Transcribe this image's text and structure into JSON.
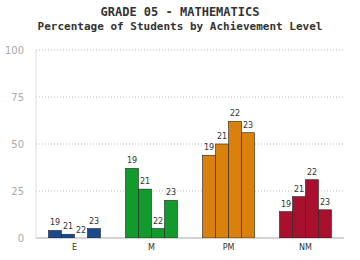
{
  "chart_data": {
    "type": "bar",
    "title": "GRADE 05 - MATHEMATICS",
    "subtitle": "Percentage of Students by Achievement Level",
    "categories": [
      "E",
      "M",
      "PM",
      "NM"
    ],
    "series": [
      {
        "name": "19",
        "colors": [
          "#1a4a8c",
          "#139a2c",
          "#da800c",
          "#a8102e"
        ],
        "values": [
          4,
          37,
          44,
          14
        ]
      },
      {
        "name": "21",
        "colors": [
          "#1a4a8c",
          "#139a2c",
          "#da800c",
          "#a8102e"
        ],
        "values": [
          2,
          26,
          50,
          22
        ]
      },
      {
        "name": "22",
        "colors": [
          "#1a4a8c",
          "#139a2c",
          "#da800c",
          "#a8102e"
        ],
        "values": [
          0,
          5,
          62,
          31
        ]
      },
      {
        "name": "23",
        "colors": [
          "#1a4a8c",
          "#139a2c",
          "#da800c",
          "#a8102e"
        ],
        "values": [
          5,
          20,
          56,
          15
        ]
      }
    ],
    "ylim": [
      0,
      100
    ],
    "yticks": [
      0,
      25,
      50,
      75,
      100
    ],
    "grid": true
  }
}
